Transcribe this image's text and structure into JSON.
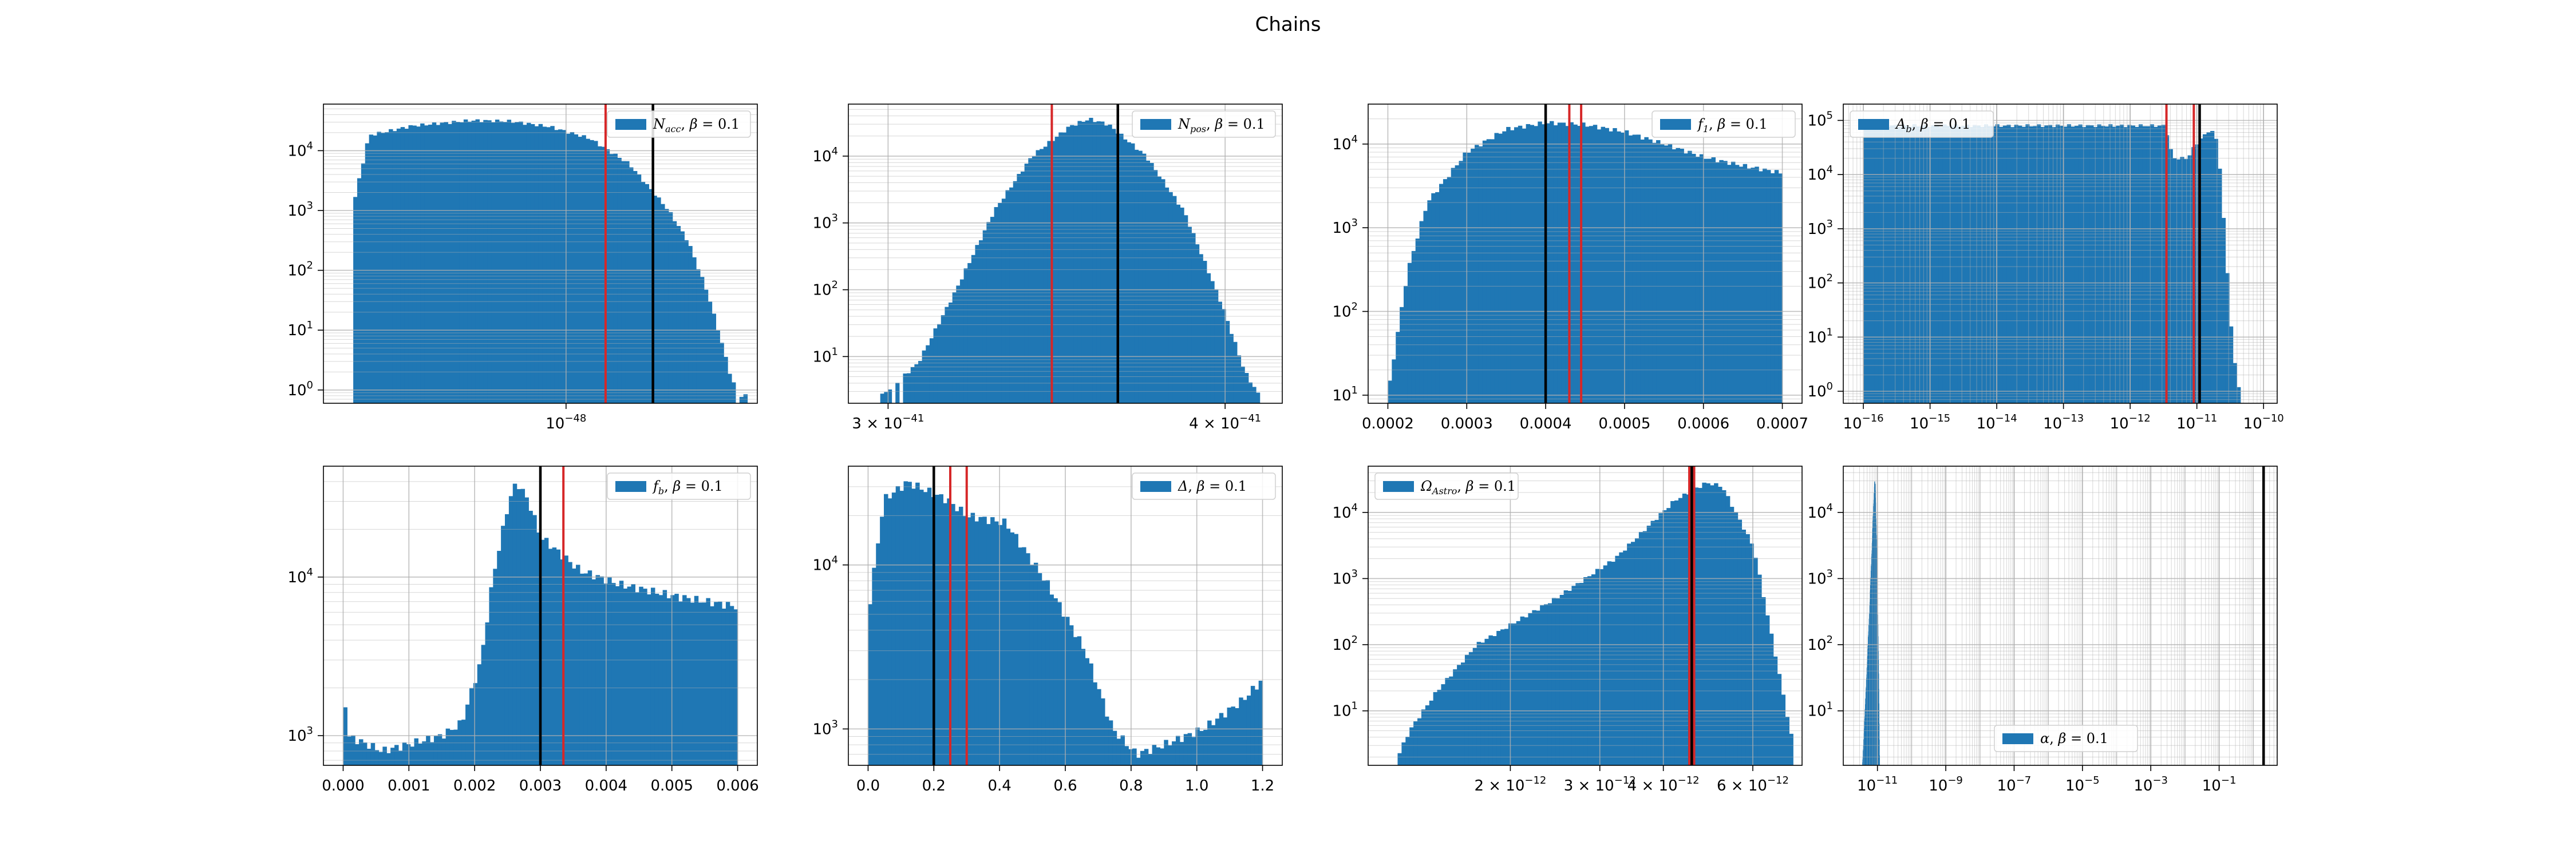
{
  "figure": {
    "title": "Chains"
  },
  "style": {
    "bar_color": "#1f77b4",
    "red_line": "#d62728",
    "black_line": "#000000",
    "grid": "#b0b0b0"
  },
  "chart_data": [
    {
      "type": "bar",
      "id": "nacc",
      "legend": "N_acc, β = 0.1",
      "legend_sym": "N",
      "legend_sub": "acc",
      "legend_pos": "top-right",
      "xscale": "log",
      "yscale": "log",
      "grid": true,
      "xlim": [
        2.2e-49,
        3.3e-48
      ],
      "ylim": [
        0.6,
        60000
      ],
      "xticks": [
        {
          "v": 1e-48,
          "base": "10",
          "exp": "−48"
        }
      ],
      "yticks": [
        {
          "v": 1,
          "exp": "0"
        },
        {
          "v": 10,
          "exp": "1"
        },
        {
          "v": 100,
          "exp": "2"
        },
        {
          "v": 1000,
          "exp": "3"
        },
        {
          "v": 10000,
          "exp": "4"
        }
      ],
      "bins": [
        2.65e-49,
        3.1e-48
      ],
      "profile": [
        [
          0,
          1200
        ],
        [
          0.04,
          18000
        ],
        [
          0.15,
          26000
        ],
        [
          0.3,
          32000
        ],
        [
          0.4,
          31000
        ],
        [
          0.5,
          25000
        ],
        [
          0.6,
          16000
        ],
        [
          0.7,
          6000
        ],
        [
          0.8,
          1000
        ],
        [
          0.85,
          300
        ],
        [
          0.9,
          40
        ],
        [
          0.93,
          8
        ],
        [
          0.96,
          1.5
        ],
        [
          0.98,
          0.8
        ],
        [
          1,
          0.8
        ]
      ],
      "gaps": [
        0.96,
        0.985
      ],
      "red_lines": [
        1.28e-48
      ],
      "black_lines": [
        1.72e-48
      ]
    },
    {
      "type": "bar",
      "id": "npos",
      "legend": "N_pos, β = 0.1",
      "legend_sym": "N",
      "legend_sub": "pos",
      "legend_pos": "top-right",
      "xscale": "log",
      "yscale": "log",
      "grid": true,
      "xlim": [
        2.9e-41,
        4.2e-41
      ],
      "ylim": [
        2.0,
        60000
      ],
      "xticks": [
        {
          "v": 3e-41,
          "base": "3 × 10",
          "exp": "−41"
        },
        {
          "v": 4e-41,
          "base": "4 × 10",
          "exp": "−41"
        }
      ],
      "yticks": [
        {
          "v": 10,
          "exp": "1"
        },
        {
          "v": 100,
          "exp": "2"
        },
        {
          "v": 1000,
          "exp": "3"
        },
        {
          "v": 10000,
          "exp": "4"
        }
      ],
      "bins": [
        2.98e-41,
        4.12e-41
      ],
      "profile": [
        [
          0,
          2.5
        ],
        [
          0.1,
          8
        ],
        [
          0.2,
          100
        ],
        [
          0.3,
          1500
        ],
        [
          0.4,
          10000
        ],
        [
          0.5,
          28000
        ],
        [
          0.55,
          36000
        ],
        [
          0.6,
          30000
        ],
        [
          0.7,
          10000
        ],
        [
          0.8,
          1500
        ],
        [
          0.9,
          60
        ],
        [
          0.96,
          6
        ],
        [
          1,
          2.5
        ]
      ],
      "gaps": [
        0.03,
        0.06
      ],
      "red_lines": [
        3.45e-41
      ],
      "black_lines": [
        3.65e-41
      ]
    },
    {
      "type": "bar",
      "id": "f1",
      "legend": "f_1, β = 0.1",
      "legend_sym": "f",
      "legend_sub": "1",
      "legend_pos": "top-right",
      "xscale": "linear",
      "yscale": "log",
      "grid": true,
      "xlim": [
        0.000175,
        0.000725
      ],
      "ylim": [
        8,
        30000
      ],
      "xticks": [
        {
          "v": 0.0002,
          "label": "0.0002"
        },
        {
          "v": 0.0003,
          "label": "0.0003"
        },
        {
          "v": 0.0004,
          "label": "0.0004"
        },
        {
          "v": 0.0005,
          "label": "0.0005"
        },
        {
          "v": 0.0006,
          "label": "0.0006"
        },
        {
          "v": 0.0007,
          "label": "0.0007"
        }
      ],
      "yticks": [
        {
          "v": 10,
          "exp": "1"
        },
        {
          "v": 100,
          "exp": "2"
        },
        {
          "v": 1000,
          "exp": "3"
        },
        {
          "v": 10000,
          "exp": "4"
        }
      ],
      "bins": [
        0.0002,
        0.0007
      ],
      "profile": [
        [
          0,
          10
        ],
        [
          0.02,
          40
        ],
        [
          0.05,
          300
        ],
        [
          0.1,
          2000
        ],
        [
          0.2,
          8000
        ],
        [
          0.3,
          15000
        ],
        [
          0.4,
          18000
        ],
        [
          0.5,
          17000
        ],
        [
          0.6,
          14000
        ],
        [
          0.7,
          10000
        ],
        [
          0.8,
          7000
        ],
        [
          0.9,
          5500
        ],
        [
          1,
          4500
        ]
      ],
      "red_lines": [
        0.00043,
        0.000445
      ],
      "black_lines": [
        0.0004
      ]
    },
    {
      "type": "bar",
      "id": "ab",
      "legend": "A_b, β = 0.1",
      "legend_sym": "A",
      "legend_sub": "b",
      "legend_pos": "top-left",
      "xscale": "log",
      "yscale": "log",
      "grid": true,
      "xlim": [
        5e-17,
        1.6e-10
      ],
      "ylim": [
        0.6,
        200000
      ],
      "xticks": [
        {
          "v": 1e-16,
          "exp": "−16"
        },
        {
          "v": 1e-15,
          "exp": "−15"
        },
        {
          "v": 1e-14,
          "exp": "−14"
        },
        {
          "v": 1e-13,
          "exp": "−13"
        },
        {
          "v": 1e-12,
          "exp": "−12"
        },
        {
          "v": 1e-11,
          "exp": "−11"
        },
        {
          "v": 1e-10,
          "exp": "−10"
        }
      ],
      "yticks": [
        {
          "v": 1,
          "exp": "0"
        },
        {
          "v": 10,
          "exp": "1"
        },
        {
          "v": 100,
          "exp": "2"
        },
        {
          "v": 1000,
          "exp": "3"
        },
        {
          "v": 10000,
          "exp": "4"
        },
        {
          "v": 100000,
          "exp": "5"
        }
      ],
      "bins": [
        1e-16,
        4.5e-11
      ],
      "profile": [
        [
          0,
          80000
        ],
        [
          0.8,
          80000
        ],
        [
          0.82,
          20000
        ],
        [
          0.86,
          20000
        ],
        [
          0.88,
          35000
        ],
        [
          0.92,
          70000
        ],
        [
          0.94,
          40000
        ],
        [
          0.96,
          500
        ],
        [
          0.98,
          5
        ],
        [
          1,
          0.8
        ]
      ],
      "red_lines": [
        3.5e-12,
        9e-12
      ],
      "black_lines": [
        1.1e-11
      ]
    },
    {
      "type": "bar",
      "id": "fb",
      "legend": "f_b, β = 0.1",
      "legend_sym": "f",
      "legend_sub": "b",
      "legend_pos": "top-right",
      "xscale": "linear",
      "yscale": "log",
      "grid": true,
      "xlim": [
        -0.0003,
        0.0063
      ],
      "ylim": [
        650,
        50000
      ],
      "xticks": [
        {
          "v": 0,
          "label": "0.000"
        },
        {
          "v": 0.001,
          "label": "0.001"
        },
        {
          "v": 0.002,
          "label": "0.002"
        },
        {
          "v": 0.003,
          "label": "0.003"
        },
        {
          "v": 0.004,
          "label": "0.004"
        },
        {
          "v": 0.005,
          "label": "0.005"
        },
        {
          "v": 0.006,
          "label": "0.006"
        }
      ],
      "yticks": [
        {
          "v": 1000,
          "exp": "3"
        },
        {
          "v": 10000,
          "exp": "4"
        }
      ],
      "bins": [
        0,
        0.006
      ],
      "profile": [
        [
          0,
          2500
        ],
        [
          0.01,
          1000
        ],
        [
          0.1,
          800
        ],
        [
          0.25,
          1000
        ],
        [
          0.3,
          1200
        ],
        [
          0.35,
          3000
        ],
        [
          0.38,
          10000
        ],
        [
          0.42,
          30000
        ],
        [
          0.44,
          40000
        ],
        [
          0.47,
          30000
        ],
        [
          0.5,
          18000
        ],
        [
          0.6,
          11000
        ],
        [
          0.7,
          9000
        ],
        [
          0.85,
          7500
        ],
        [
          1,
          6500
        ]
      ],
      "red_lines": [
        0.00335
      ],
      "black_lines": [
        0.003
      ]
    },
    {
      "type": "bar",
      "id": "delta",
      "legend": "Δ, β = 0.1",
      "legend_sym": "Δ",
      "legend_sub": "",
      "legend_pos": "top-right",
      "xscale": "linear",
      "yscale": "log",
      "grid": true,
      "xlim": [
        -0.06,
        1.26
      ],
      "ylim": [
        600,
        40000
      ],
      "xticks": [
        {
          "v": 0,
          "label": "0.0"
        },
        {
          "v": 0.2,
          "label": "0.2"
        },
        {
          "v": 0.4,
          "label": "0.4"
        },
        {
          "v": 0.6,
          "label": "0.6"
        },
        {
          "v": 0.8,
          "label": "0.8"
        },
        {
          "v": 1.0,
          "label": "1.0"
        },
        {
          "v": 1.2,
          "label": "1.2"
        }
      ],
      "yticks": [
        {
          "v": 1000,
          "exp": "3"
        },
        {
          "v": 10000,
          "exp": "4"
        }
      ],
      "bins": [
        0,
        1.2
      ],
      "profile": [
        [
          0,
          5000
        ],
        [
          0.04,
          25000
        ],
        [
          0.1,
          32000
        ],
        [
          0.2,
          25000
        ],
        [
          0.25,
          20000
        ],
        [
          0.35,
          18000
        ],
        [
          0.45,
          8000
        ],
        [
          0.55,
          3000
        ],
        [
          0.62,
          1000
        ],
        [
          0.68,
          700
        ],
        [
          0.75,
          800
        ],
        [
          0.85,
          1000
        ],
        [
          0.95,
          1500
        ],
        [
          1,
          2000
        ]
      ],
      "red_lines": [
        0.25,
        0.3
      ],
      "black_lines": [
        0.2
      ]
    },
    {
      "type": "bar",
      "id": "omega",
      "legend": "Ω_Astro, β = 0.1",
      "legend_sym": "Ω",
      "legend_sub": "Astro",
      "legend_pos": "top-left",
      "xscale": "log",
      "yscale": "log",
      "grid": true,
      "xlim": [
        1.05e-12,
        7.5e-12
      ],
      "ylim": [
        1.5,
        50000
      ],
      "xticks": [
        {
          "v": 2e-12,
          "base": "2 × 10",
          "exp": "−12"
        },
        {
          "v": 3e-12,
          "base": "3 × 10",
          "exp": "−12"
        },
        {
          "v": 4e-12,
          "base": "4 × 10",
          "exp": "−12"
        },
        {
          "v": 6e-12,
          "base": "6 × 10",
          "exp": "−12"
        }
      ],
      "yticks": [
        {
          "v": 10,
          "exp": "1"
        },
        {
          "v": 100,
          "exp": "2"
        },
        {
          "v": 1000,
          "exp": "3"
        },
        {
          "v": 10000,
          "exp": "4"
        }
      ],
      "bins": [
        1.2e-12,
        7.2e-12
      ],
      "profile": [
        [
          0,
          2
        ],
        [
          0.03,
          5
        ],
        [
          0.1,
          20
        ],
        [
          0.2,
          100
        ],
        [
          0.4,
          500
        ],
        [
          0.55,
          2000
        ],
        [
          0.7,
          15000
        ],
        [
          0.78,
          28000
        ],
        [
          0.82,
          25000
        ],
        [
          0.9,
          3000
        ],
        [
          0.95,
          100
        ],
        [
          1,
          3
        ]
      ],
      "red_lines": [
        4.5e-12,
        4.6e-12
      ],
      "black_lines": [
        4.55e-12
      ]
    },
    {
      "type": "bar",
      "id": "alpha",
      "legend": "α, β = 0.1",
      "legend_sym": "α",
      "legend_sub": "",
      "legend_pos": "lower-center",
      "xscale": "log",
      "yscale": "log",
      "grid": true,
      "xlim": [
        1e-12,
        5
      ],
      "ylim": [
        1.5,
        50000
      ],
      "xticks": [
        {
          "v": 1e-11,
          "exp": "−11"
        },
        {
          "v": 1e-09,
          "exp": "−9"
        },
        {
          "v": 1e-07,
          "exp": "−7"
        },
        {
          "v": 1e-05,
          "exp": "−5"
        },
        {
          "v": 0.001,
          "exp": "−3"
        },
        {
          "v": 0.1,
          "exp": "−1"
        }
      ],
      "yticks": [
        {
          "v": 10,
          "exp": "1"
        },
        {
          "v": 100,
          "exp": "2"
        },
        {
          "v": 1000,
          "exp": "3"
        },
        {
          "v": 10000,
          "exp": "4"
        }
      ],
      "bins": [
        3.6e-12,
        1.15e-11
      ],
      "profile": [
        [
          0,
          1.5
        ],
        [
          0.2,
          20
        ],
        [
          0.4,
          300
        ],
        [
          0.55,
          3000
        ],
        [
          0.65,
          15000
        ],
        [
          0.7,
          30000
        ],
        [
          0.75,
          25000
        ],
        [
          0.85,
          2000
        ],
        [
          0.95,
          30
        ],
        [
          1,
          1.5
        ]
      ],
      "red_lines": [],
      "black_lines": [
        2.0
      ]
    }
  ]
}
